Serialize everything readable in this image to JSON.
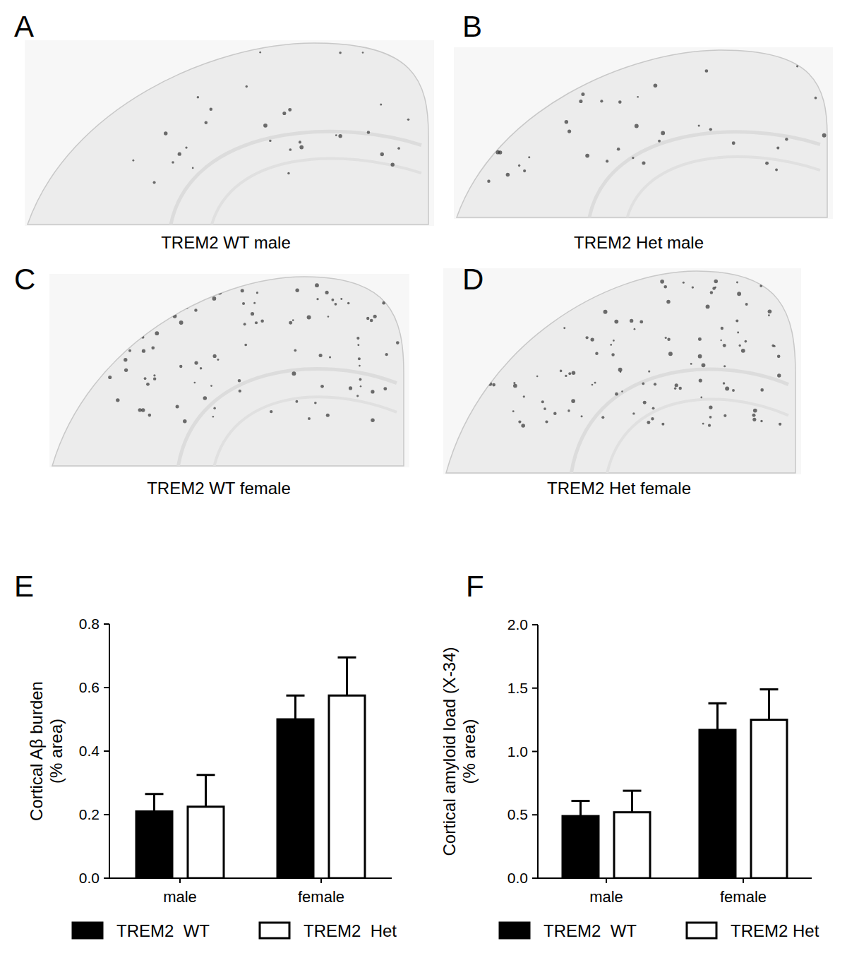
{
  "panels": [
    {
      "label": "A",
      "caption": "TREM2 WT male"
    },
    {
      "label": "B",
      "caption": "TREM2 Het male"
    },
    {
      "label": "C",
      "caption": "TREM2 WT female"
    },
    {
      "label": "D",
      "caption": "TREM2 Het female"
    }
  ],
  "chart_data": [
    {
      "type": "bar",
      "title": "E",
      "ylabel": [
        "Cortical  Aβ burden",
        "(% area)"
      ],
      "categories": [
        "male",
        "female"
      ],
      "series": [
        {
          "name": "TREM2  WT",
          "color": "#000000",
          "values": [
            0.21,
            0.5
          ],
          "errors": [
            0.055,
            0.075
          ]
        },
        {
          "name": "TREM2  Het",
          "color": "#ffffff",
          "values": [
            0.225,
            0.575
          ],
          "errors": [
            0.1,
            0.12
          ]
        }
      ],
      "ylim": [
        0,
        0.8
      ],
      "yticks": [
        {
          "value": 0,
          "label": "0.0"
        },
        0.2,
        0.4,
        0.6,
        0.8
      ],
      "grid": false
    },
    {
      "type": "bar",
      "title": "F",
      "ylabel": [
        "Cortical amyloid load (X-34)",
        "(% area)"
      ],
      "categories": [
        "male",
        "female"
      ],
      "series": [
        {
          "name": "TREM2  WT",
          "color": "#000000",
          "values": [
            0.49,
            1.17
          ],
          "errors": [
            0.12,
            0.21
          ]
        },
        {
          "name": "TREM2 Het",
          "color": "#ffffff",
          "values": [
            0.52,
            1.25
          ],
          "errors": [
            0.17,
            0.24
          ]
        }
      ],
      "ylim": [
        0,
        2
      ],
      "yticks": [
        {
          "value": 0,
          "label": "0.0"
        },
        0.5,
        {
          "value": 1,
          "label": "1.0"
        },
        1.5,
        {
          "value": 2,
          "label": "2.0"
        }
      ],
      "grid": false
    }
  ]
}
